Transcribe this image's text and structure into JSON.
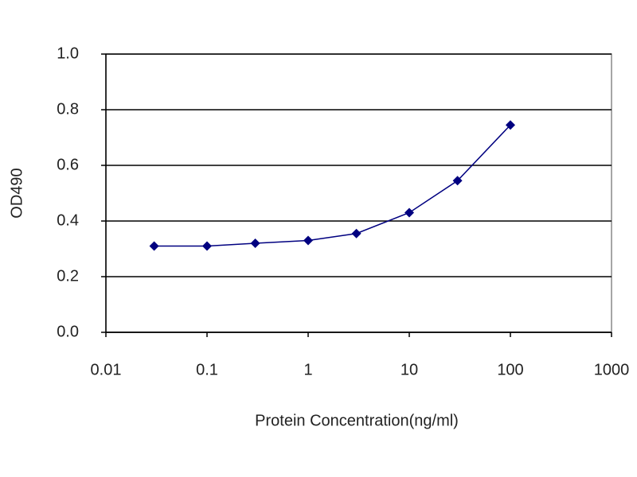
{
  "chart_data": {
    "type": "line",
    "x_label": "Protein Concentration(ng/ml)",
    "y_label": "OD490",
    "x": [
      0.03,
      0.1,
      0.3,
      1,
      3,
      10,
      30,
      100
    ],
    "values": [
      0.31,
      0.31,
      0.32,
      0.33,
      0.355,
      0.43,
      0.545,
      0.745
    ],
    "color": "#000080",
    "xscale": "log",
    "xlim": [
      0.01,
      1000
    ],
    "xticks": [
      0.01,
      0.1,
      1,
      10,
      100,
      1000
    ],
    "ylim": [
      0,
      1
    ],
    "yticks": [
      {
        "value": 0,
        "label": "0.0"
      },
      0.2,
      0.4,
      0.6,
      0.8,
      {
        "value": 1,
        "label": "1.0"
      }
    ],
    "grid": true
  }
}
